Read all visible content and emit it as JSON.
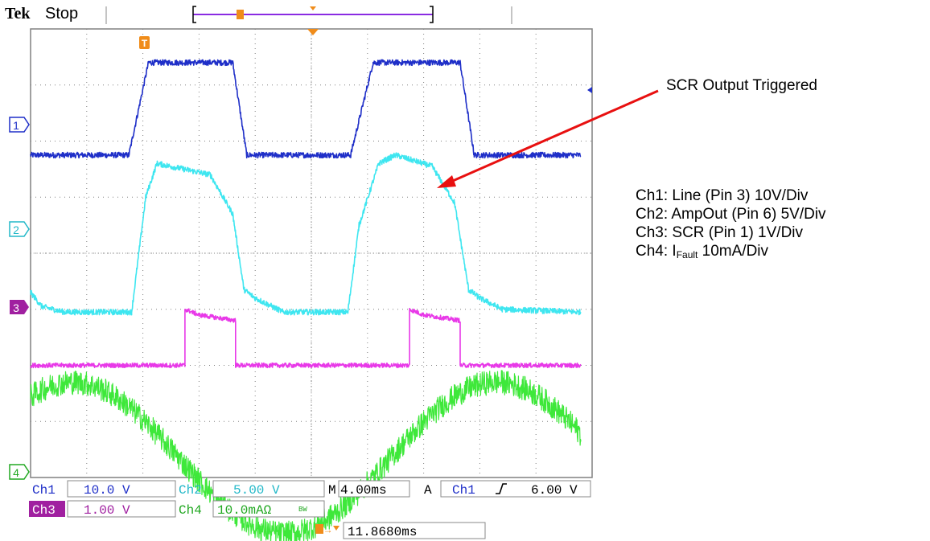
{
  "header": {
    "brand": "Tek",
    "state": "Stop"
  },
  "annotations": {
    "trigger_label": "SCR Output Triggered"
  },
  "legend": {
    "ch1": "Ch1: Line (Pin 3) 10V/Div",
    "ch2": "Ch2: AmpOut (Pin 6) 5V/Div",
    "ch3": "Ch3: SCR (Pin 1) 1V/Div",
    "ch4_prefix": "Ch4: I",
    "ch4_sub": "Fault",
    "ch4_suffix": " 10mA/Div"
  },
  "readout": {
    "ch1_label": "Ch1",
    "ch1_scale": "10.0 V",
    "ch2_label": "Ch2",
    "ch2_scale": "5.00 V",
    "ch3_label": "Ch3",
    "ch3_scale": "1.00 V",
    "ch4_label": "Ch4",
    "ch4_scale": "10.0mAΩ",
    "ch4_bw": "BW",
    "time_label": "M",
    "time_scale": "4.00ms",
    "trigger_label": "A",
    "trigger_source": "Ch1",
    "trigger_slope": "ʃ",
    "trigger_level": "6.00 V",
    "trigger_delay": "11.8680ms",
    "trigger_marker": "T"
  },
  "markers": {
    "ch1": "1",
    "ch2": "2",
    "ch3": "3",
    "ch4": "4"
  },
  "colors": {
    "ch1": "#1f2fc8",
    "ch2": "#3ee6f0",
    "ch3": "#e838e8",
    "ch4": "#3ee83a",
    "trigger": "#f08c1a",
    "grid": "#808080"
  },
  "chart_data": {
    "type": "line",
    "x_units": "divisions",
    "y_units": "divisions",
    "xlim": [
      0,
      10
    ],
    "ylim": [
      -4,
      4
    ],
    "grid": true,
    "time_per_div": "4.00ms",
    "series": [
      {
        "key": "ch1",
        "x": [
          0,
          1.75,
          2.1,
          3.6,
          3.85,
          5.7,
          6.1,
          7.65,
          7.9,
          9.8
        ],
        "y": [
          1.75,
          1.75,
          3.4,
          3.4,
          1.75,
          1.75,
          3.4,
          3.4,
          1.75,
          1.75
        ]
      },
      {
        "key": "ch2",
        "x": [
          0,
          0.2,
          0.6,
          1.8,
          2.05,
          2.25,
          3.2,
          3.6,
          3.8,
          4.0,
          4.5,
          5.65,
          5.85,
          6.2,
          6.5,
          7.15,
          7.55,
          7.8,
          8.0,
          8.4,
          9.8
        ],
        "y": [
          -0.7,
          -0.95,
          -1.05,
          -1.05,
          1.0,
          1.6,
          1.4,
          0.7,
          -0.65,
          -0.8,
          -1.05,
          -1.05,
          0.5,
          1.6,
          1.75,
          1.55,
          0.9,
          -0.65,
          -0.8,
          -1.0,
          -1.05
        ]
      },
      {
        "key": "ch3",
        "x": [
          0,
          2.75,
          2.75,
          3.0,
          3.65,
          3.65,
          6.75,
          6.75,
          7.0,
          7.65,
          7.65,
          9.8
        ],
        "y": [
          -2.0,
          -2.0,
          -1.0,
          -1.1,
          -1.2,
          -2.0,
          -2.0,
          -1.0,
          -1.1,
          -1.2,
          -2.0,
          -2.0
        ]
      },
      {
        "key": "ch4",
        "sine": {
          "offset": -3.65,
          "amplitude": 1.35,
          "period": 7.55,
          "x_peak": 0.75
        }
      }
    ]
  }
}
